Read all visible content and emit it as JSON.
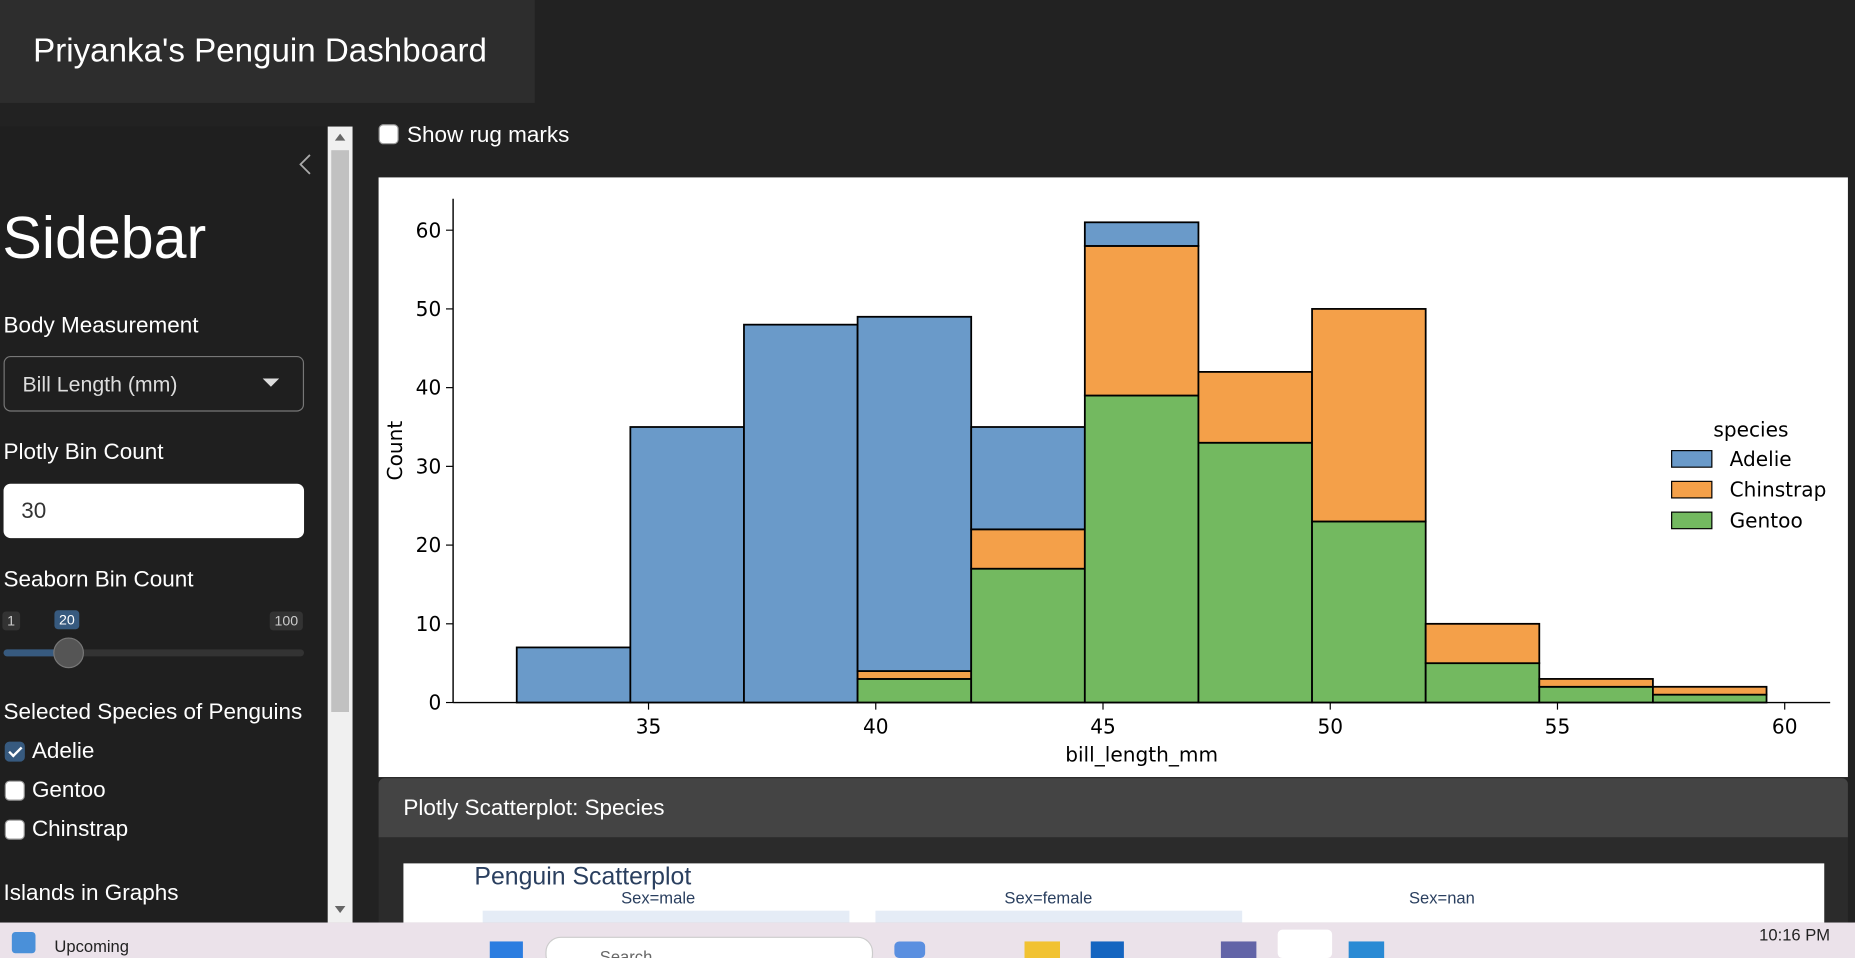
{
  "header": {
    "title": "Priyanka's Penguin Dashboard"
  },
  "sidebar": {
    "title": "Sidebar",
    "body_measurement": {
      "label": "Body Measurement",
      "value": "Bill Length (mm)"
    },
    "plotly_bin_count": {
      "label": "Plotly Bin Count",
      "value": 30
    },
    "seaborn_bin_count": {
      "label": "Seaborn Bin Count",
      "min": 1,
      "value": 20,
      "max": 100
    },
    "species": {
      "label": "Selected Species of Penguins",
      "options": [
        {
          "label": "Adelie",
          "checked": true
        },
        {
          "label": "Gentoo",
          "checked": false
        },
        {
          "label": "Chinstrap",
          "checked": false
        }
      ]
    },
    "islands": {
      "label": "Islands in Graphs"
    }
  },
  "main": {
    "rug_marks": {
      "label": "Show rug marks",
      "checked": false
    },
    "histogram": {
      "type": "histogram",
      "x_label": "bill_length_mm",
      "y_label": "Count",
      "legend_title": "species",
      "legend": "right",
      "bins": [
        32.1,
        34.6,
        37.1,
        39.6,
        42.1,
        44.6,
        47.1,
        49.6,
        52.1,
        54.6,
        57.1,
        59.6
      ],
      "series": [
        {
          "name": "Adelie",
          "color": "#6a9ac9",
          "values": [
            7,
            35,
            48,
            45,
            13,
            3,
            0,
            0,
            0,
            0,
            0
          ]
        },
        {
          "name": "Chinstrap",
          "color": "#f4a049",
          "values": [
            0,
            0,
            0,
            1,
            5,
            19,
            9,
            27,
            5,
            1,
            1
          ]
        },
        {
          "name": "Gentoo",
          "color": "#73b960",
          "values": [
            0,
            0,
            0,
            3,
            17,
            39,
            33,
            23,
            5,
            2,
            1
          ]
        }
      ],
      "xlim": [
        30.7,
        61
      ],
      "ylim": [
        0,
        64
      ],
      "xticks": [
        35,
        40,
        45,
        50,
        55,
        60
      ],
      "yticks": [
        0,
        10,
        20,
        30,
        40,
        50,
        60
      ]
    },
    "scatter_card": {
      "title": "Plotly Scatterplot: Species",
      "plot_title": "Penguin Scatterplot",
      "facets": [
        "Sex=male",
        "Sex=female",
        "Sex=nan"
      ]
    }
  },
  "taskbar": {
    "upcoming": "Upcoming",
    "search": "Search",
    "time": "10:16 PM"
  }
}
